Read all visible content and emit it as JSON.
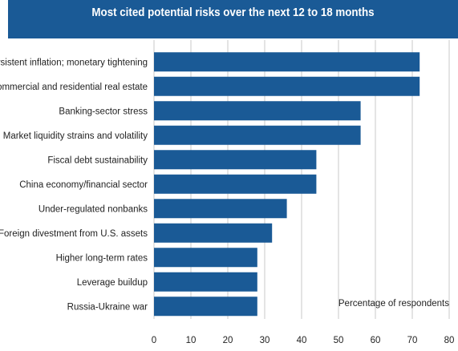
{
  "chart_data": {
    "type": "bar",
    "orientation": "horizontal",
    "title": "Most cited potential risks over the next 12 to 18 months",
    "categories": [
      "Persistent inflation; monetary tightening",
      "Commercial and residential real estate",
      "Banking-sector stress",
      "Market liquidity strains and volatility",
      "Fiscal debt sustainability",
      "China economy/financial sector",
      "Under-regulated nonbanks",
      "Foreign divestment from U.S. assets",
      "Higher long-term rates",
      "Leverage buildup",
      "Russia-Ukraine war"
    ],
    "values": [
      72,
      72,
      56,
      56,
      44,
      44,
      36,
      32,
      28,
      28,
      28
    ],
    "xlabel": "Percentage of respondents",
    "xlim": [
      0,
      80
    ],
    "xticks": [
      "0",
      "10",
      "20",
      "30",
      "40",
      "50",
      "60",
      "70",
      "80"
    ],
    "bar_color": "#1a5a96",
    "grid": true,
    "grid_color": "#c9c9c9"
  }
}
